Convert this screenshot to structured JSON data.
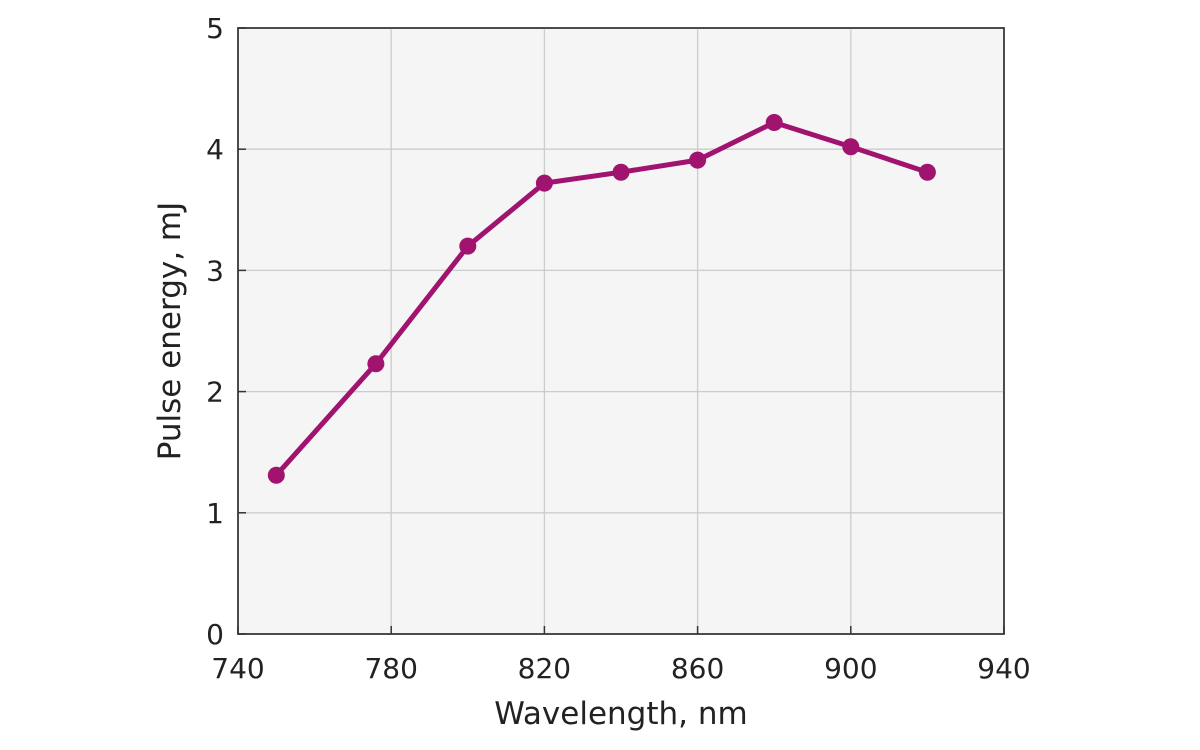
{
  "chart_data": {
    "type": "line",
    "title": "",
    "xlabel": "Wavelength, nm",
    "ylabel": "Pulse energy, mJ",
    "xlim": [
      740,
      940
    ],
    "ylim": [
      0,
      5
    ],
    "xticks": [
      740,
      780,
      820,
      860,
      900,
      940
    ],
    "yticks": [
      0,
      1,
      2,
      3,
      4,
      5
    ],
    "grid": true,
    "legend": "none",
    "series": [
      {
        "color": "#a0136e",
        "marker": "circle",
        "x": [
          750,
          776,
          800,
          820,
          840,
          860,
          880,
          900,
          920
        ],
        "y": [
          1.31,
          2.23,
          3.2,
          3.72,
          3.81,
          3.91,
          4.22,
          4.02,
          3.81
        ]
      }
    ]
  }
}
